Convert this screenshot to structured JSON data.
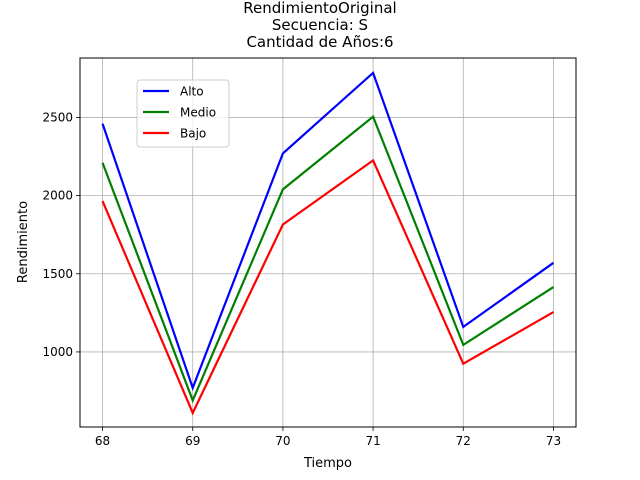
{
  "chart_data": {
    "type": "line",
    "title_lines": [
      "RendimientoOriginal",
      "Secuencia: S",
      "Cantidad de Años:6"
    ],
    "xlabel": "Tiempo",
    "ylabel": "Rendimiento",
    "x": [
      68,
      69,
      70,
      71,
      72,
      73
    ],
    "xticks": [
      68,
      69,
      70,
      71,
      72,
      73
    ],
    "yticks": [
      1000,
      1500,
      2000,
      2500
    ],
    "xlim": [
      67.75,
      73.25
    ],
    "ylim": [
      520,
      2880
    ],
    "grid": true,
    "legend_position": "upper-left",
    "series": [
      {
        "name": "Alto",
        "color": "#0000ff",
        "values": [
          2460,
          770,
          2270,
          2785,
          1160,
          1570
        ]
      },
      {
        "name": "Medio",
        "color": "#008000",
        "values": [
          2210,
          690,
          2040,
          2505,
          1045,
          1415
        ]
      },
      {
        "name": "Bajo",
        "color": "#ff0000",
        "values": [
          1965,
          610,
          1815,
          2225,
          925,
          1255
        ]
      }
    ]
  }
}
